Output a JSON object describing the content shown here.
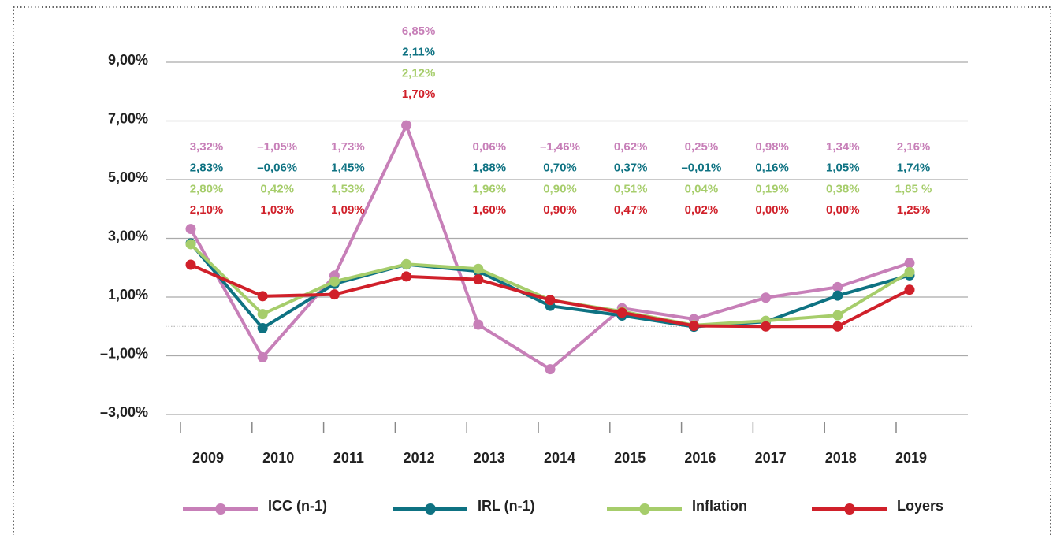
{
  "chart_data": {
    "type": "line",
    "categories": [
      "2009",
      "2010",
      "2011",
      "2012",
      "2013",
      "2014",
      "2015",
      "2016",
      "2017",
      "2018",
      "2019"
    ],
    "series": [
      {
        "name": "ICC (n-1)",
        "color": "#c77fb8",
        "values": [
          3.32,
          -1.05,
          1.73,
          6.85,
          0.06,
          -1.46,
          0.62,
          0.25,
          0.98,
          1.34,
          2.16
        ],
        "value_labels": [
          "3,32%",
          "–1,05%",
          "1,73%",
          "6,85%",
          "0,06%",
          "–1,46%",
          "0,62%",
          "0,25%",
          "0,98%",
          "1,34%",
          "2,16%"
        ]
      },
      {
        "name": "IRL (n-1)",
        "color": "#0e7282",
        "values": [
          2.83,
          -0.06,
          1.45,
          2.11,
          1.88,
          0.7,
          0.37,
          -0.01,
          0.16,
          1.05,
          1.74
        ],
        "value_labels": [
          "2,83%",
          "–0,06%",
          "1,45%",
          "2,11%",
          "1,88%",
          "0,70%",
          "0,37%",
          "–0,01%",
          "0,16%",
          "1,05%",
          "1,74%"
        ]
      },
      {
        "name": "Inflation",
        "color": "#a6cd6b",
        "values": [
          2.8,
          0.42,
          1.53,
          2.12,
          1.96,
          0.9,
          0.51,
          0.04,
          0.19,
          0.38,
          1.85
        ],
        "value_labels": [
          "2,80%",
          "0,42%",
          "1,53%",
          "2,12%",
          "1,96%",
          "0,90%",
          "0,51%",
          "0,04%",
          "0,19%",
          "0,38%",
          "1,85 %"
        ]
      },
      {
        "name": "Loyers",
        "color": "#d0202a",
        "values": [
          2.1,
          1.03,
          1.09,
          1.7,
          1.6,
          0.9,
          0.47,
          0.02,
          0.0,
          0.0,
          1.25
        ],
        "value_labels": [
          "2,10%",
          "1,03%",
          "1,09%",
          "1,70%",
          "1,60%",
          "0,90%",
          "0,47%",
          "0,02%",
          "0,00%",
          "0,00%",
          "1,25%"
        ]
      }
    ],
    "ylim": [
      -3,
      9
    ],
    "yticks": [
      {
        "value": -3,
        "label": "–3,00%"
      },
      {
        "value": -1,
        "label": "–1,00%"
      },
      {
        "value": 1,
        "label": "1,00%"
      },
      {
        "value": 3,
        "label": "3,00%"
      },
      {
        "value": 5,
        "label": "5,00%"
      },
      {
        "value": 7,
        "label": "7,00%"
      },
      {
        "value": 9,
        "label": "9,00%"
      }
    ],
    "grid": true,
    "legend": "bottom"
  }
}
